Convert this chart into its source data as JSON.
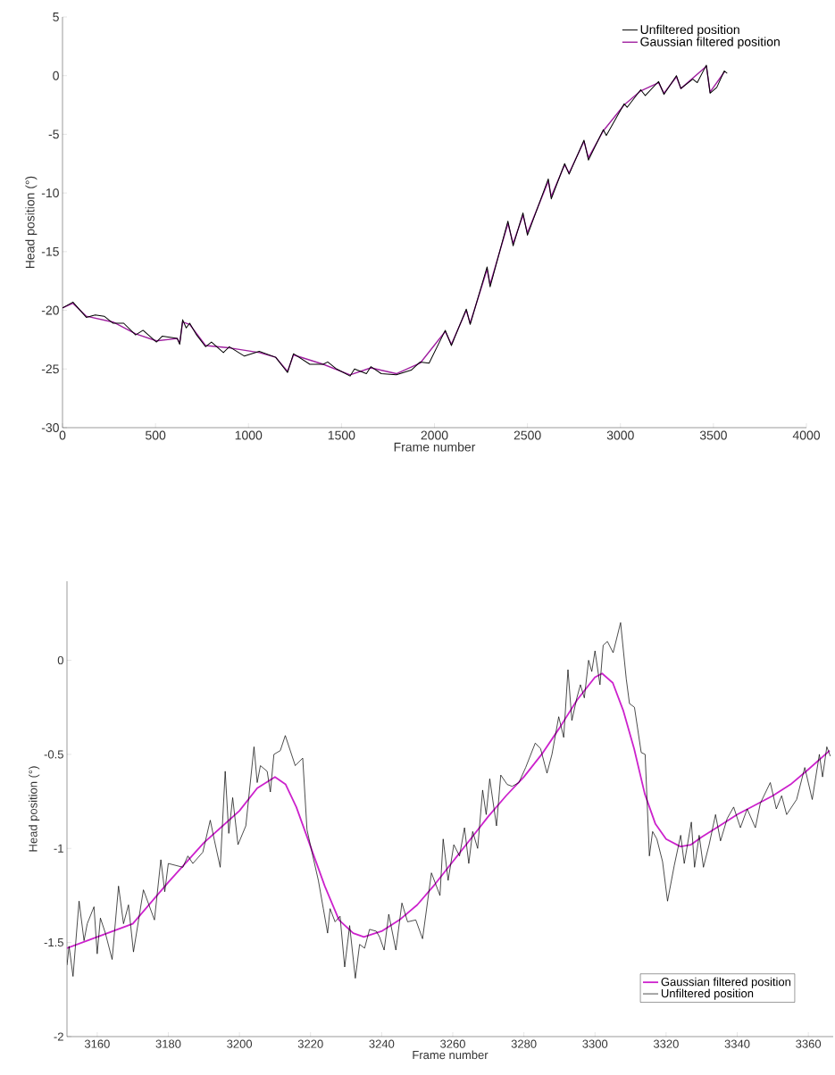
{
  "chart_data": [
    {
      "type": "line",
      "xlabel": "Frame number",
      "ylabel": "Head position (°)",
      "xlim": [
        0,
        4000
      ],
      "ylim": [
        -30,
        5
      ],
      "xticks": [
        0,
        500,
        1000,
        1500,
        2000,
        2500,
        3000,
        3500,
        4000
      ],
      "yticks": [
        5,
        0,
        -5,
        -10,
        -15,
        -20,
        -25,
        -30
      ],
      "legend": "top right",
      "series": [
        {
          "name": "Unfiltered position",
          "color": "#000000",
          "x": [
            0,
            56,
            128,
            176,
            224,
            272,
            329,
            393,
            433,
            505,
            537,
            617,
            630,
            646,
            665,
            684,
            721,
            769,
            801,
            865,
            897,
            978,
            1058,
            1146,
            1210,
            1242,
            1330,
            1402,
            1426,
            1474,
            1546,
            1570,
            1634,
            1658,
            1714,
            1795,
            1875,
            1923,
            1971,
            2058,
            2091,
            2171,
            2192,
            2283,
            2299,
            2395,
            2423,
            2476,
            2500,
            2612,
            2628,
            2700,
            2724,
            2804,
            2828,
            2908,
            2924,
            3020,
            3036,
            3109,
            3133,
            3205,
            3234,
            3301,
            3325,
            3389,
            3413,
            3462,
            3482,
            3518,
            3558,
            3574
          ],
          "values": [
            -19.8,
            -19.3,
            -20.6,
            -20.4,
            -20.5,
            -21.1,
            -21.1,
            -22.1,
            -21.7,
            -22.7,
            -22.2,
            -22.4,
            -22.9,
            -20.8,
            -21.5,
            -21.1,
            -22.1,
            -23.1,
            -22.7,
            -23.6,
            -23.1,
            -23.9,
            -23.5,
            -24.0,
            -25.3,
            -23.7,
            -24.6,
            -24.6,
            -24.4,
            -25.0,
            -25.6,
            -25.0,
            -25.4,
            -24.8,
            -25.4,
            -25.5,
            -25.1,
            -24.4,
            -24.5,
            -21.7,
            -23.0,
            -19.9,
            -21.2,
            -16.3,
            -18.0,
            -12.4,
            -14.5,
            -11.7,
            -13.6,
            -8.8,
            -10.5,
            -7.5,
            -8.4,
            -5.5,
            -7.2,
            -4.6,
            -5.1,
            -2.4,
            -2.7,
            -1.2,
            -1.7,
            -0.5,
            -1.6,
            0.0,
            -1.1,
            -0.3,
            -0.6,
            0.9,
            -1.5,
            -1.0,
            0.4,
            0.2
          ]
        },
        {
          "name": "Gaussian filtered position",
          "color": "#a020a0",
          "x": [
            0,
            56,
            128,
            272,
            393,
            505,
            617,
            630,
            646,
            684,
            769,
            897,
            1058,
            1146,
            1210,
            1242,
            1402,
            1546,
            1658,
            1795,
            1923,
            2058,
            2091,
            2171,
            2192,
            2283,
            2299,
            2395,
            2423,
            2476,
            2500,
            2612,
            2628,
            2700,
            2724,
            2804,
            2828,
            2908,
            3020,
            3109,
            3205,
            3234,
            3301,
            3325,
            3462,
            3482,
            3558
          ],
          "values": [
            -19.8,
            -19.4,
            -20.5,
            -21.0,
            -22.0,
            -22.6,
            -22.4,
            -22.8,
            -21.0,
            -21.2,
            -23.0,
            -23.2,
            -23.6,
            -24.0,
            -25.2,
            -23.8,
            -24.6,
            -25.5,
            -24.9,
            -25.4,
            -24.5,
            -21.8,
            -22.9,
            -20.0,
            -21.1,
            -16.5,
            -17.8,
            -12.6,
            -14.3,
            -11.9,
            -13.4,
            -9.0,
            -10.3,
            -7.6,
            -8.3,
            -5.6,
            -7.0,
            -4.7,
            -2.5,
            -1.3,
            -0.6,
            -1.5,
            -0.1,
            -1.1,
            0.8,
            -1.4,
            0.3
          ]
        }
      ]
    },
    {
      "type": "line",
      "xlabel": "Frame number",
      "ylabel": "Head position (°)",
      "xlim": [
        3151.5,
        3367
      ],
      "ylim": [
        -2,
        0.42
      ],
      "xticks": [
        3160,
        3180,
        3200,
        3220,
        3240,
        3260,
        3280,
        3300,
        3320,
        3340,
        3360
      ],
      "yticks": [
        0,
        -0.5,
        -1,
        -1.5,
        -2
      ],
      "legend": "bottom right",
      "series": [
        {
          "name": "Gaussian filtered position",
          "color": "#cc22cc",
          "x": [
            3151.5,
            3160,
            3170,
            3180,
            3190,
            3200,
            3205,
            3210,
            3213,
            3216,
            3220,
            3224,
            3228,
            3232,
            3235,
            3240,
            3245,
            3250,
            3255,
            3260,
            3265,
            3270,
            3275,
            3280,
            3285,
            3290,
            3295,
            3300,
            3302,
            3305,
            3308,
            3311,
            3314,
            3317,
            3320,
            3324,
            3327,
            3330,
            3335,
            3340,
            3345,
            3350,
            3355,
            3360,
            3366
          ],
          "values": [
            -1.53,
            -1.47,
            -1.4,
            -1.18,
            -0.97,
            -0.8,
            -0.68,
            -0.62,
            -0.66,
            -0.78,
            -0.99,
            -1.2,
            -1.38,
            -1.45,
            -1.47,
            -1.44,
            -1.38,
            -1.3,
            -1.19,
            -1.07,
            -0.95,
            -0.83,
            -0.72,
            -0.62,
            -0.5,
            -0.36,
            -0.21,
            -0.09,
            -0.07,
            -0.12,
            -0.27,
            -0.47,
            -0.71,
            -0.87,
            -0.95,
            -0.99,
            -0.98,
            -0.94,
            -0.88,
            -0.82,
            -0.77,
            -0.72,
            -0.66,
            -0.58,
            -0.48
          ]
        },
        {
          "name": "Unfiltered position",
          "color": "#000000",
          "x": [
            3151.5,
            3152.1,
            3153.2,
            3154.9,
            3156.3,
            3157.2,
            3159.1,
            3160,
            3160.9,
            3162.3,
            3164.2,
            3166.0,
            3167.4,
            3168.8,
            3170.2,
            3173.0,
            3176.1,
            3177.9,
            3179.0,
            3180.0,
            3184.1,
            3185.5,
            3186.9,
            3189.7,
            3191.8,
            3193.0,
            3194.6,
            3196.0,
            3197.0,
            3198.1,
            3199.6,
            3201.8,
            3204.1,
            3205.0,
            3205.9,
            3207.8,
            3208.7,
            3209.7,
            3211.5,
            3212.9,
            3215.7,
            3217.8,
            3219.0,
            3220.4,
            3222.2,
            3223.6,
            3224.8,
            3225.5,
            3226.9,
            3228.3,
            3229.6,
            3231.0,
            3232.6,
            3233.8,
            3235.2,
            3236.6,
            3238.5,
            3239.4,
            3240.7,
            3242.0,
            3244.0,
            3245.7,
            3247.3,
            3249.6,
            3251.5,
            3254.0,
            3256.4,
            3257.3,
            3258.7,
            3260.3,
            3261.9,
            3263.3,
            3264.5,
            3265.6,
            3267.0,
            3268.4,
            3269.4,
            3270.4,
            3272.3,
            3273.5,
            3275.3,
            3276.7,
            3278.6,
            3280.5,
            3283.2,
            3284.7,
            3286.5,
            3287.9,
            3289.8,
            3291.2,
            3292.4,
            3293.5,
            3294.9,
            3295.9,
            3297.0,
            3298.2,
            3299.1,
            3300.0,
            3301.4,
            3302.3,
            3303.5,
            3305.1,
            3307.2,
            3308.8,
            3309.7,
            3311.1,
            3313.0,
            3314.1,
            3315.3,
            3316.2,
            3317.4,
            3319.0,
            3320.4,
            3322.3,
            3324.1,
            3325.1,
            3327.1,
            3328.0,
            3329.3,
            3330.5,
            3332.1,
            3333.9,
            3335.3,
            3337.2,
            3339.0,
            3340.9,
            3342.8,
            3345.1,
            3346.5,
            3349.3,
            3351.0,
            3352.5,
            3353.9,
            3356.7,
            3359.0,
            3361.1,
            3363.1,
            3364.0,
            3365.2,
            3366.2
          ],
          "values": [
            -1.62,
            -1.52,
            -1.68,
            -1.28,
            -1.49,
            -1.4,
            -1.31,
            -1.56,
            -1.37,
            -1.45,
            -1.59,
            -1.2,
            -1.4,
            -1.3,
            -1.55,
            -1.22,
            -1.38,
            -1.06,
            -1.23,
            -1.08,
            -1.1,
            -1.04,
            -1.08,
            -1.02,
            -0.85,
            -0.96,
            -1.1,
            -0.59,
            -0.92,
            -0.73,
            -0.98,
            -0.88,
            -0.46,
            -0.65,
            -0.56,
            -0.59,
            -0.7,
            -0.5,
            -0.48,
            -0.4,
            -0.56,
            -0.52,
            -0.9,
            -1.02,
            -1.17,
            -1.32,
            -1.45,
            -1.32,
            -1.39,
            -1.36,
            -1.63,
            -1.41,
            -1.69,
            -1.51,
            -1.53,
            -1.43,
            -1.44,
            -1.47,
            -1.54,
            -1.35,
            -1.54,
            -1.29,
            -1.39,
            -1.38,
            -1.48,
            -1.13,
            -1.25,
            -0.95,
            -1.17,
            -0.98,
            -1.04,
            -0.89,
            -1.08,
            -0.91,
            -1.0,
            -0.69,
            -0.82,
            -0.63,
            -0.88,
            -0.61,
            -0.66,
            -0.67,
            -0.65,
            -0.57,
            -0.44,
            -0.47,
            -0.6,
            -0.5,
            -0.3,
            -0.41,
            -0.05,
            -0.32,
            -0.2,
            -0.13,
            -0.2,
            0.0,
            -0.06,
            0.05,
            -0.13,
            0.08,
            0.1,
            0.04,
            0.2,
            -0.1,
            -0.23,
            -0.25,
            -0.49,
            -0.5,
            -1.04,
            -0.91,
            -0.95,
            -1.07,
            -1.28,
            -1.09,
            -0.93,
            -1.08,
            -0.86,
            -1.1,
            -0.93,
            -1.1,
            -0.98,
            -0.82,
            -0.96,
            -0.84,
            -0.78,
            -0.89,
            -0.79,
            -0.89,
            -0.76,
            -0.65,
            -0.79,
            -0.72,
            -0.82,
            -0.74,
            -0.57,
            -0.74,
            -0.5,
            -0.62,
            -0.46,
            -0.51
          ]
        }
      ]
    }
  ]
}
